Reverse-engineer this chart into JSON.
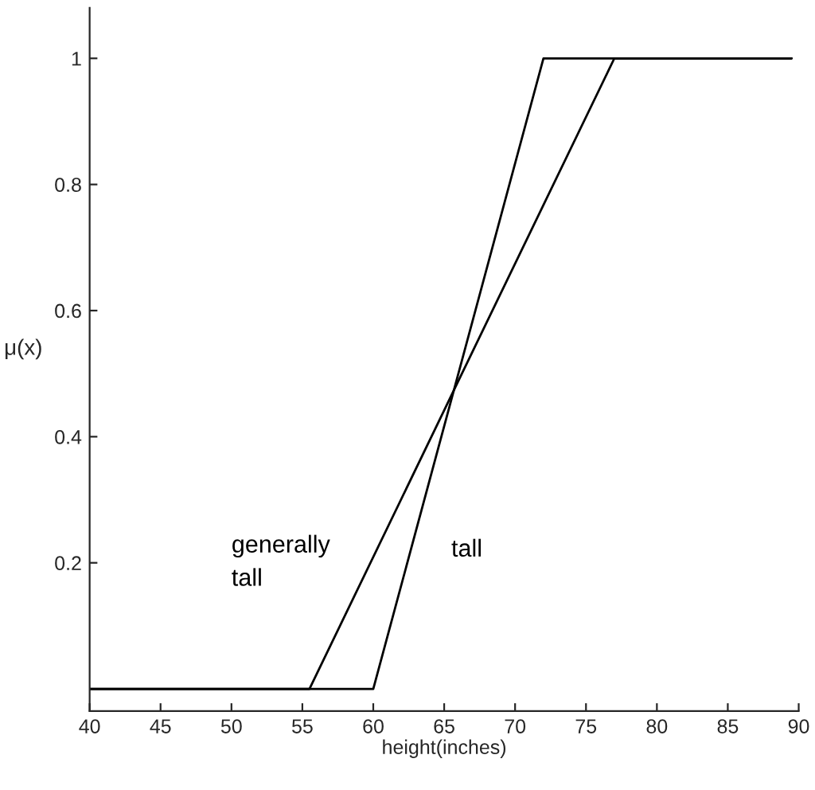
{
  "chart_data": {
    "type": "line",
    "xlabel": "height(inches)",
    "ylabel": "μ(x)",
    "series": [
      {
        "name": "generally tall",
        "color": "#000000",
        "x": [
          40,
          55.5,
          77,
          89.5
        ],
        "values": [
          0,
          0,
          1,
          1
        ]
      },
      {
        "name": "tall",
        "color": "#000000",
        "x": [
          40,
          60,
          72,
          89.5
        ],
        "values": [
          0,
          0,
          1,
          1
        ]
      }
    ],
    "xlim": [
      40,
      90
    ],
    "xticks": [
      40,
      45,
      50,
      55,
      60,
      65,
      70,
      75,
      80,
      85,
      90
    ],
    "ylim": [
      -0.035,
      1.08
    ],
    "yticks": [
      0.2,
      0.4,
      0.6,
      0.8,
      1
    ],
    "grid": false,
    "legend": false,
    "marker": "none",
    "line_style": "solid"
  }
}
